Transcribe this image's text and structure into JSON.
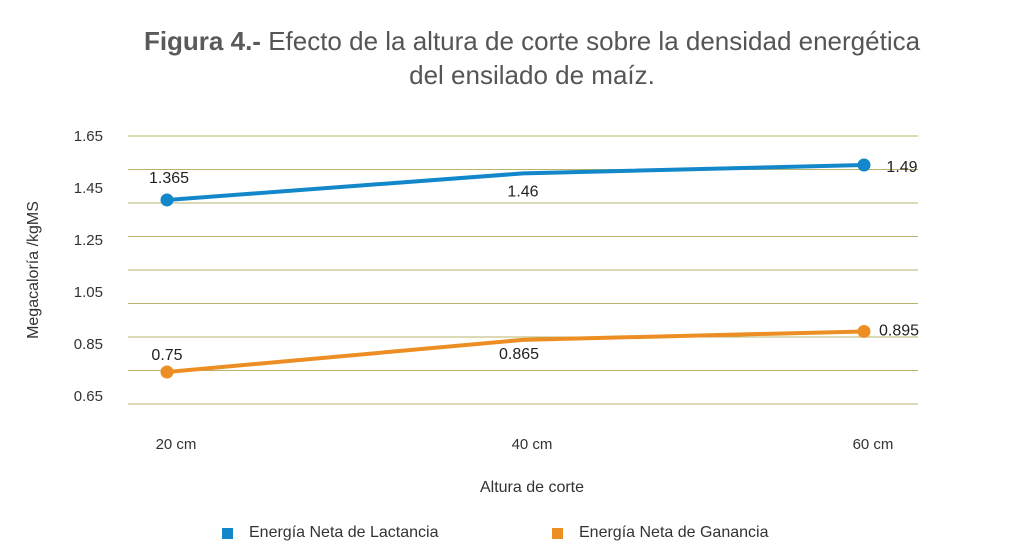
{
  "title": {
    "prefix": "Figura 4.-",
    "line1": "Efecto de la altura de corte sobre la densidad energética",
    "line2": "del ensilado de maíz."
  },
  "chart_data": {
    "type": "line",
    "categories": [
      "20 cm",
      "40 cm",
      "60 cm"
    ],
    "xlabel": "Altura de corte",
    "ylabel": "Megacaloría /kgMS",
    "ylim": [
      0.65,
      1.65
    ],
    "yticks": [
      "1.65",
      "1.45",
      "1.25",
      "1.05",
      "0.85",
      "0.65"
    ],
    "grid": true,
    "legend_position": "bottom",
    "series": [
      {
        "name": "Energía Neta de Lactancia",
        "color": "#1287c9",
        "values": [
          1.365,
          1.46,
          1.49
        ],
        "labels": [
          "1.365",
          "1.46",
          "1.49"
        ]
      },
      {
        "name": "Energía Neta de Ganancia",
        "color": "#ec8e23",
        "values": [
          0.75,
          0.865,
          0.895
        ],
        "labels": [
          "0.75",
          "0.865",
          "0.895"
        ]
      }
    ]
  },
  "colors": {
    "gridline": "#b9b46a"
  }
}
